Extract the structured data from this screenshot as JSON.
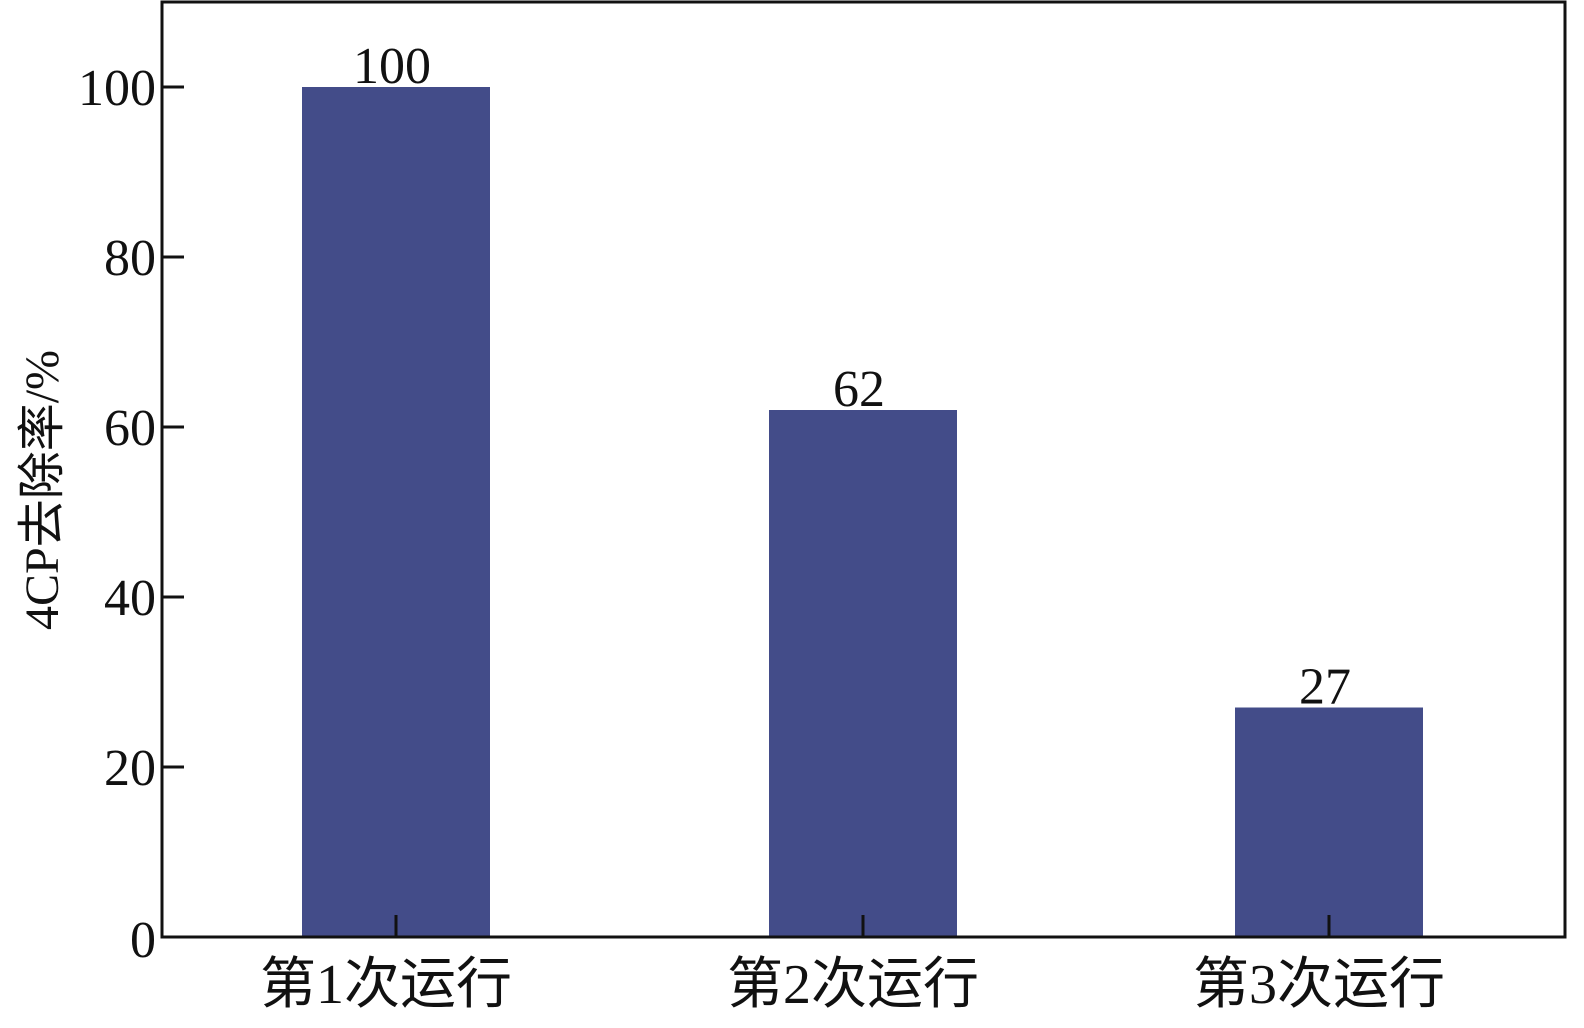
{
  "chart_data": {
    "type": "bar",
    "title": "",
    "xlabel": "",
    "ylabel": "4CP去除率/%",
    "categories": [
      "第1次运行",
      "第2次运行",
      "第3次运行"
    ],
    "values": [
      100,
      62,
      27
    ],
    "data_labels": [
      "100",
      "62",
      "27"
    ],
    "ylim": [
      0,
      110
    ],
    "yticks": [
      0,
      20,
      40,
      60,
      80,
      100
    ],
    "ytick_labels": [
      "0",
      "20",
      "40",
      "60",
      "80",
      "100"
    ],
    "grid": false,
    "bar_color": "#434C89"
  }
}
